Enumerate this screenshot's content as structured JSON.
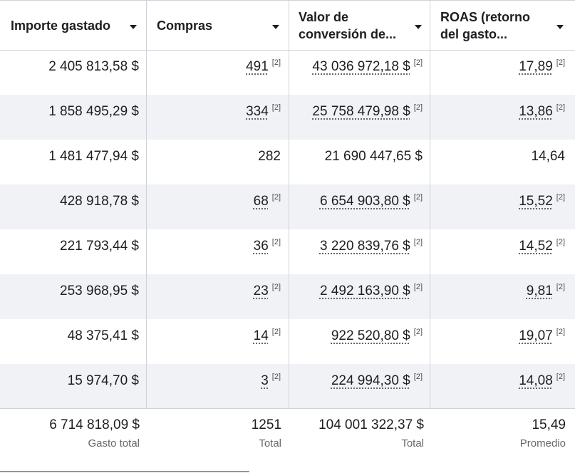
{
  "columns": [
    {
      "label": "Importe gastado"
    },
    {
      "label": "Compras"
    },
    {
      "label": "Valor de conversión de..."
    },
    {
      "label": "ROAS (retorno del gasto..."
    }
  ],
  "ref_marker": "[2]",
  "rows": [
    {
      "spend": "2 405 813,58 $",
      "purchases": "491",
      "value": "43 036 972,18 $",
      "roas": "17,89"
    },
    {
      "spend": "1 858 495,29 $",
      "purchases": "334",
      "value": "25 758 479,98 $",
      "roas": "13,86"
    },
    {
      "spend": "1 481 477,94 $",
      "purchases": "282",
      "value": "21 690 447,65 $",
      "roas": "14,64"
    },
    {
      "spend": "428 918,78 $",
      "purchases": "68",
      "value": "6 654 903,80 $",
      "roas": "15,52"
    },
    {
      "spend": "221 793,44 $",
      "purchases": "36",
      "value": "3 220 839,76 $",
      "roas": "14,52"
    },
    {
      "spend": "253 968,95 $",
      "purchases": "23",
      "value": "2 492 163,90 $",
      "roas": "9,81"
    },
    {
      "spend": "48 375,41 $",
      "purchases": "14",
      "value": "922 520,80 $",
      "roas": "19,07"
    },
    {
      "spend": "15 974,70 $",
      "purchases": "3",
      "value": "224 994,30 $",
      "roas": "14,08"
    }
  ],
  "totals": {
    "spend": {
      "value": "6 714 818,09 $",
      "label": "Gasto total"
    },
    "purchases": {
      "value": "1251",
      "label": "Total"
    },
    "value": {
      "value": "104 001 322,37 $",
      "label": "Total"
    },
    "roas": {
      "value": "15,49",
      "label": "Promedio"
    }
  }
}
